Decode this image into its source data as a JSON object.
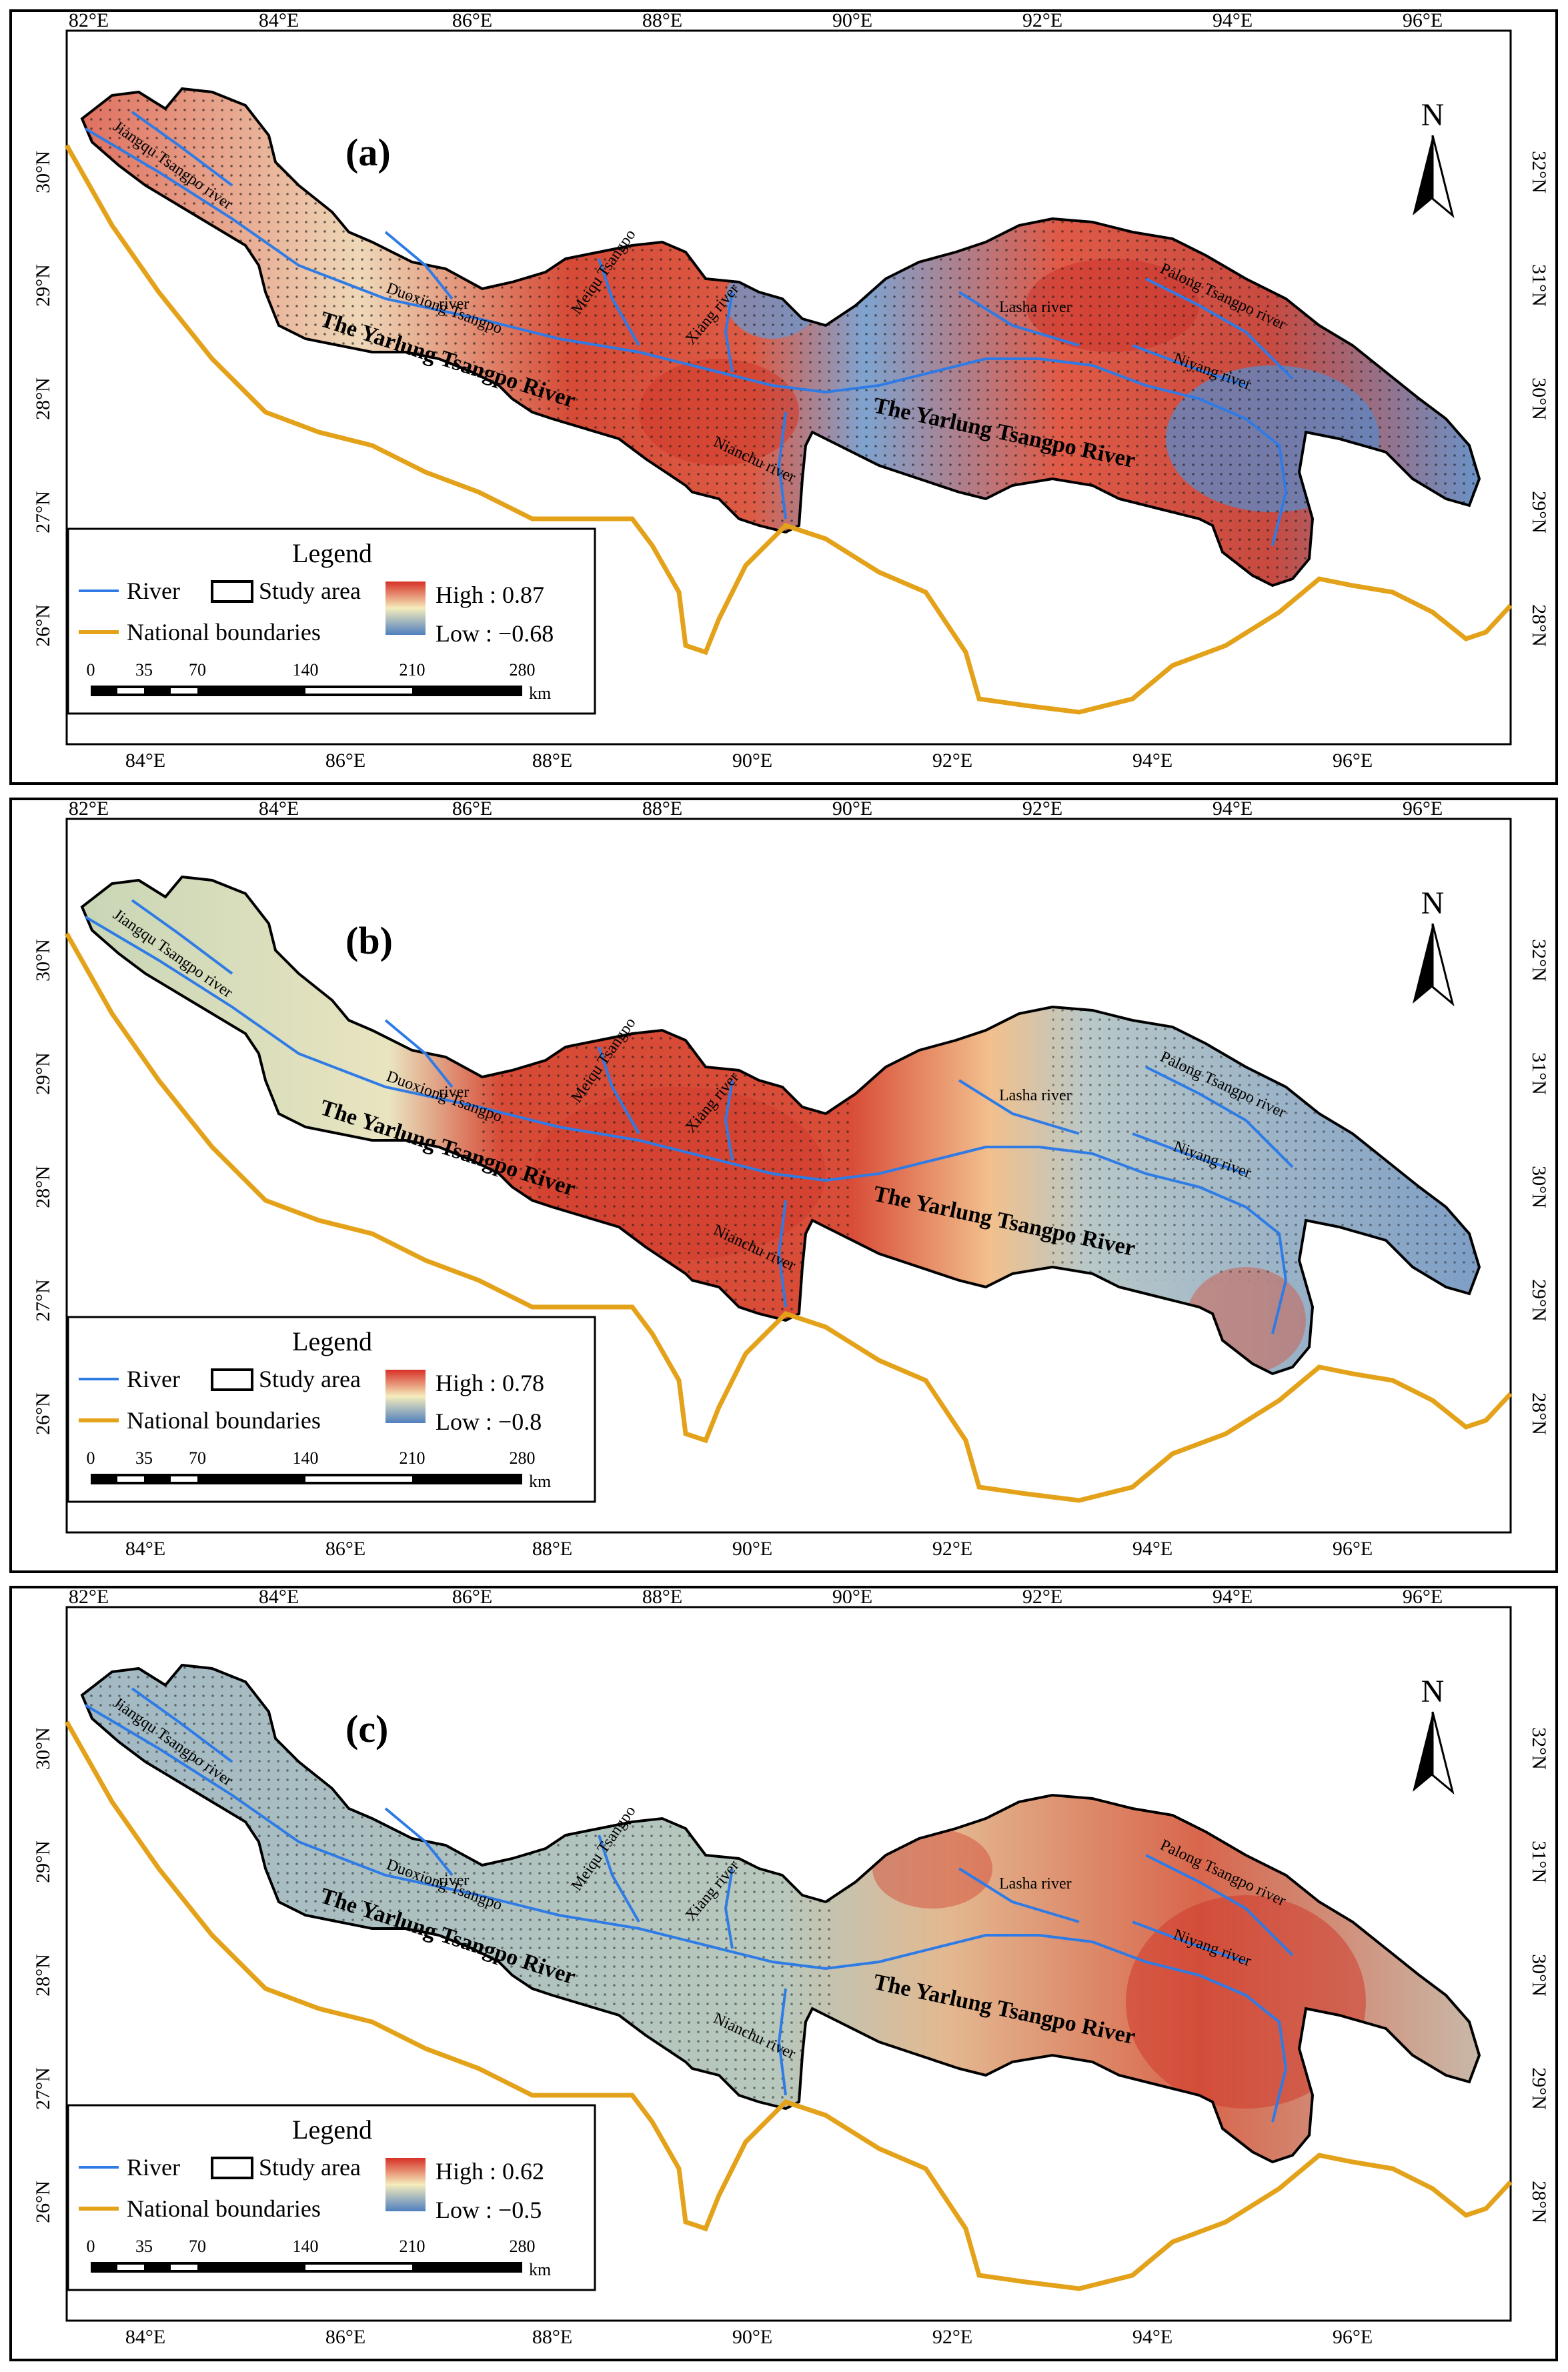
{
  "colors": {
    "high": "#d73027",
    "mid": "#f5ecbc",
    "low": "#4f7fbf",
    "river": "#2f7be6",
    "boundary": "#e3a21a",
    "outline": "#000000"
  },
  "axes": {
    "top": [
      "82°E",
      "84°E",
      "86°E",
      "88°E",
      "90°E",
      "92°E",
      "94°E",
      "96°E"
    ],
    "bottom": [
      "84°E",
      "86°E",
      "88°E",
      "90°E",
      "92°E",
      "94°E",
      "96°E"
    ],
    "left": [
      "30°N",
      "29°N",
      "28°N",
      "27°N",
      "26°N"
    ],
    "right": [
      "32°N",
      "31°N",
      "30°N",
      "29°N",
      "28°N"
    ]
  },
  "labels": {
    "north": "N",
    "main_river": "The Yarlung Tsangpo River",
    "jiangqu": "Jiangqu Tsangpo river",
    "duoxiong1": "Duoxiong Tsangpo",
    "duoxiong2": "river",
    "meiqu1": "Meiqu Tsangpo",
    "meiqu2": "river",
    "xiang": "Xiang river",
    "nianchu": "Nianchu river",
    "lasha": "Lasha river",
    "palong": "Palong Tsangpo river",
    "niyang": "Niyang river"
  },
  "legend": {
    "title": "Legend",
    "river": "River",
    "study_area": "Study area",
    "boundaries": "National boundaries"
  },
  "scalebar": {
    "ticks": [
      "0",
      "35",
      "70",
      "140",
      "210",
      "280"
    ],
    "unit": "km"
  },
  "panels": [
    {
      "id": "a",
      "label": "(a)",
      "high": "High : 0.87",
      "low": "Low : −0.68"
    },
    {
      "id": "b",
      "label": "(b)",
      "high": "High : 0.78",
      "low": "Low : −0.8"
    },
    {
      "id": "c",
      "label": "(c)",
      "high": "High : 0.62",
      "low": "Low : −0.5"
    }
  ]
}
